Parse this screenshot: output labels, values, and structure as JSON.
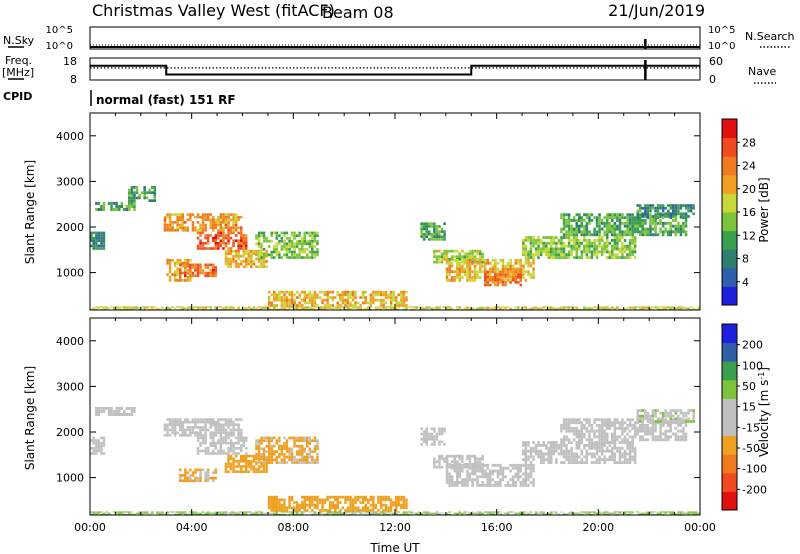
{
  "header": {
    "station": "Christmas Valley West (fitACF)",
    "beam": "Beam 08",
    "date": "21/Jun/2019"
  },
  "chart_data": [
    {
      "type": "line",
      "panel": "noise",
      "left_label": "N.Sky",
      "right_label": "N.Search",
      "ytick_labels_left": [
        "10^5",
        "10^0"
      ],
      "ytick_labels_right": [
        "10^5",
        "10^0"
      ],
      "series": [
        {
          "style": "solid",
          "x": [
            0,
            24
          ],
          "y": [
            0.3,
            0.3
          ]
        },
        {
          "style": "dotted",
          "x": [
            0,
            24
          ],
          "y": [
            0.3,
            0.3
          ]
        }
      ],
      "markers": [
        {
          "x": 21.85,
          "note": "gap"
        }
      ]
    },
    {
      "type": "line",
      "panel": "frequency",
      "left_label": "Freq.",
      "left_unit": "[MHz]",
      "right_label": "Nave",
      "left_ticks": [
        18,
        8
      ],
      "right_ticks": [
        60,
        0
      ],
      "ylim_left": [
        8,
        18
      ],
      "ylim_right": [
        0,
        60
      ],
      "series": [
        {
          "name_hidden": "freq",
          "style": "solid",
          "x": [
            0,
            3,
            3,
            15,
            15,
            24
          ],
          "y": [
            14.5,
            14.5,
            10.5,
            10.5,
            14.5,
            14.5
          ]
        },
        {
          "name_hidden": "nave",
          "style": "dotted",
          "x": [
            0,
            24
          ],
          "y": [
            33,
            33
          ]
        }
      ],
      "markers": [
        {
          "x": 21.85,
          "note": "gap"
        }
      ]
    },
    {
      "type": "text",
      "panel": "cpid",
      "label": "CPID",
      "value": "normal (fast) 151 RF"
    },
    {
      "type": "heatmap",
      "panel": "power",
      "ylabel": "Slant Range [km]",
      "xlim": [
        0,
        24
      ],
      "ylim": [
        180,
        4500
      ],
      "yticks": [
        1000,
        2000,
        3000,
        4000
      ],
      "colorbar": {
        "label": "Power [dB]",
        "range": [
          0,
          32
        ],
        "ticks": [
          4,
          8,
          12,
          16,
          20,
          24,
          28
        ],
        "colors": [
          "#1f1fe0",
          "#2e5fa8",
          "#2f7f6f",
          "#3aa050",
          "#7cc43a",
          "#c8d83a",
          "#f0a020",
          "#f07a20",
          "#f04a20",
          "#e01010"
        ]
      },
      "regions": [
        {
          "t": [
            0.0,
            0.6
          ],
          "r": [
            1500,
            1900
          ],
          "v": 9
        },
        {
          "t": [
            0.2,
            1.8
          ],
          "r": [
            2350,
            2550
          ],
          "v": 12
        },
        {
          "t": [
            1.5,
            2.6
          ],
          "r": [
            2550,
            2900
          ],
          "v": 10
        },
        {
          "t": [
            2.9,
            6.0
          ],
          "r": [
            1900,
            2300
          ],
          "v": 22
        },
        {
          "t": [
            4.2,
            6.2
          ],
          "r": [
            1500,
            1900
          ],
          "v": 26
        },
        {
          "t": [
            3.0,
            4.0
          ],
          "r": [
            800,
            1300
          ],
          "v": 20
        },
        {
          "t": [
            3.5,
            5.0
          ],
          "r": [
            900,
            1200
          ],
          "v": 25
        },
        {
          "t": [
            5.3,
            7.0
          ],
          "r": [
            1100,
            1500
          ],
          "v": 20
        },
        {
          "t": [
            6.5,
            9.0
          ],
          "r": [
            1300,
            1900
          ],
          "v": 14
        },
        {
          "t": [
            7.0,
            12.5
          ],
          "r": [
            250,
            600
          ],
          "v": 20
        },
        {
          "t": [
            13.0,
            14.0
          ],
          "r": [
            1700,
            2100
          ],
          "v": 11
        },
        {
          "t": [
            13.5,
            15.5
          ],
          "r": [
            1200,
            1500
          ],
          "v": 16
        },
        {
          "t": [
            14.0,
            17.5
          ],
          "r": [
            800,
            1300
          ],
          "v": 20
        },
        {
          "t": [
            15.5,
            17.0
          ],
          "r": [
            700,
            1100
          ],
          "v": 24
        },
        {
          "t": [
            17.0,
            21.5
          ],
          "r": [
            1300,
            1800
          ],
          "v": 15
        },
        {
          "t": [
            18.5,
            23.5
          ],
          "r": [
            1800,
            2300
          ],
          "v": 12
        },
        {
          "t": [
            21.5,
            23.8
          ],
          "r": [
            2200,
            2500
          ],
          "v": 9
        },
        {
          "t": [
            0.0,
            24.0
          ],
          "r": [
            180,
            260
          ],
          "v": 18
        }
      ]
    },
    {
      "type": "heatmap",
      "panel": "velocity",
      "ylabel": "Slant Range [km]",
      "xlabel": "Time UT",
      "xlim": [
        0,
        24
      ],
      "ylim": [
        180,
        4500
      ],
      "xtick_labels": [
        "00:00",
        "04:00",
        "08:00",
        "12:00",
        "16:00",
        "20:00",
        "00:00"
      ],
      "yticks": [
        1000,
        2000,
        3000,
        4000
      ],
      "colorbar": {
        "label": "Velocity [m s",
        "label_sup": "-1",
        "label_end": "]",
        "range": [
          -250,
          250
        ],
        "tick_labels": [
          "200",
          "100",
          "50",
          "15",
          "-15",
          "-50",
          "-100",
          "-200"
        ],
        "colors": [
          "#e01010",
          "#f04a20",
          "#f07a20",
          "#f0a020",
          "#c0c0c0",
          "#c0c0c0",
          "#7cc43a",
          "#3aa050",
          "#2e5fa8",
          "#1f1fe0"
        ]
      },
      "regions": [
        {
          "t": [
            0.0,
            0.6
          ],
          "r": [
            1500,
            1900
          ],
          "v": 0
        },
        {
          "t": [
            0.2,
            1.8
          ],
          "r": [
            2350,
            2550
          ],
          "v": 0
        },
        {
          "t": [
            2.9,
            6.0
          ],
          "r": [
            1900,
            2300
          ],
          "v": -10
        },
        {
          "t": [
            4.2,
            6.2
          ],
          "r": [
            1500,
            1900
          ],
          "v": -10
        },
        {
          "t": [
            3.5,
            5.0
          ],
          "r": [
            900,
            1200
          ],
          "v": -60
        },
        {
          "t": [
            5.3,
            7.0
          ],
          "r": [
            1100,
            1500
          ],
          "v": -70
        },
        {
          "t": [
            6.5,
            9.0
          ],
          "r": [
            1300,
            1900
          ],
          "v": -60
        },
        {
          "t": [
            7.0,
            12.5
          ],
          "r": [
            250,
            600
          ],
          "v": -80
        },
        {
          "t": [
            13.0,
            14.0
          ],
          "r": [
            1700,
            2100
          ],
          "v": 0
        },
        {
          "t": [
            13.5,
            15.5
          ],
          "r": [
            1200,
            1500
          ],
          "v": 5
        },
        {
          "t": [
            14.0,
            17.5
          ],
          "r": [
            800,
            1300
          ],
          "v": 0
        },
        {
          "t": [
            17.0,
            21.5
          ],
          "r": [
            1300,
            1800
          ],
          "v": 0
        },
        {
          "t": [
            18.5,
            23.5
          ],
          "r": [
            1800,
            2300
          ],
          "v": 10
        },
        {
          "t": [
            21.5,
            23.8
          ],
          "r": [
            2200,
            2500
          ],
          "v": 40
        },
        {
          "t": [
            0.0,
            24.0
          ],
          "r": [
            180,
            260
          ],
          "v": 60
        }
      ]
    }
  ]
}
